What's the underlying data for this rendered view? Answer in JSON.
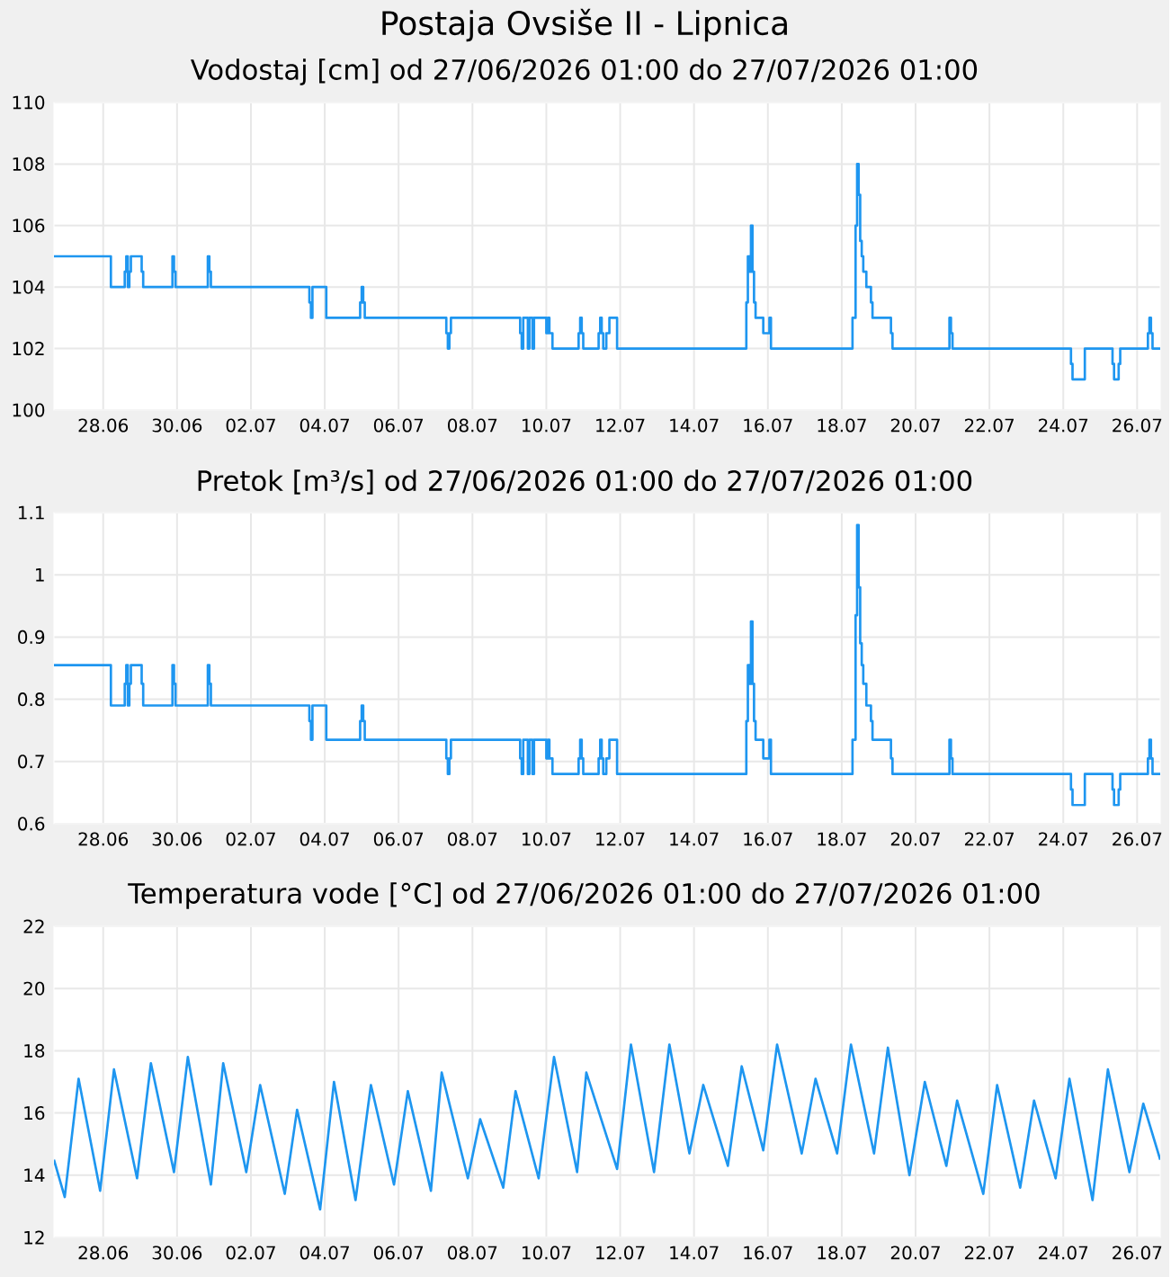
{
  "chart_data": [
    {
      "type": "step",
      "title": "Postaja Ovsiše II - Lipnica",
      "subtitle": "Vodostaj [cm] od 27/06/2026 01:00 do 27/07/2026 01:00",
      "grid": true,
      "xlim": [
        "2026-06-26T16:00",
        "2026-07-26T15:00"
      ],
      "ylim": [
        100,
        110
      ],
      "yticks": [
        100,
        102,
        104,
        106,
        108,
        110
      ],
      "xticks": [
        {
          "value": "2026-06-28",
          "label": "28.06"
        },
        {
          "value": "2026-06-30",
          "label": "30.06"
        },
        {
          "value": "2026-07-02",
          "label": "02.07"
        },
        {
          "value": "2026-07-04",
          "label": "04.07"
        },
        {
          "value": "2026-07-06",
          "label": "06.07"
        },
        {
          "value": "2026-07-08",
          "label": "08.07"
        },
        {
          "value": "2026-07-10",
          "label": "10.07"
        },
        {
          "value": "2026-07-12",
          "label": "12.07"
        },
        {
          "value": "2026-07-14",
          "label": "14.07"
        },
        {
          "value": "2026-07-16",
          "label": "16.07"
        },
        {
          "value": "2026-07-18",
          "label": "18.07"
        },
        {
          "value": "2026-07-20",
          "label": "20.07"
        },
        {
          "value": "2026-07-22",
          "label": "22.07"
        },
        {
          "value": "2026-07-24",
          "label": "24.07"
        },
        {
          "value": "2026-07-26",
          "label": "26.07"
        }
      ],
      "x": [
        "2026-06-26T16:00",
        "2026-06-28T05:00",
        "2026-06-28T14:00",
        "2026-06-28T15:00",
        "2026-06-28T16:00",
        "2026-06-28T17:00",
        "2026-06-28T18:00",
        "2026-06-29T01:00",
        "2026-06-29T02:00",
        "2026-06-29T21:00",
        "2026-06-29T22:00",
        "2026-06-29T23:00",
        "2026-06-30T20:00",
        "2026-06-30T21:00",
        "2026-06-30T22:00",
        "2026-07-03T14:00",
        "2026-07-03T15:00",
        "2026-07-03T16:00",
        "2026-07-04T01:00",
        "2026-07-04T23:00",
        "2026-07-05T00:00",
        "2026-07-05T01:00",
        "2026-07-05T02:00",
        "2026-07-07T07:00",
        "2026-07-07T08:00",
        "2026-07-07T09:00",
        "2026-07-07T10:00",
        "2026-07-09T07:00",
        "2026-07-09T08:00",
        "2026-07-09T09:00",
        "2026-07-09T12:00",
        "2026-07-09T13:00",
        "2026-07-09T15:00",
        "2026-07-09T16:00",
        "2026-07-10T00:00",
        "2026-07-10T01:00",
        "2026-07-10T02:00",
        "2026-07-10T04:00",
        "2026-07-10T21:00",
        "2026-07-10T22:00",
        "2026-07-10T23:00",
        "2026-07-11T00:00",
        "2026-07-11T10:00",
        "2026-07-11T11:00",
        "2026-07-11T12:00",
        "2026-07-11T13:00",
        "2026-07-11T15:00",
        "2026-07-11T17:00",
        "2026-07-11T22:00",
        "2026-07-15T10:00",
        "2026-07-15T11:00",
        "2026-07-15T12:00",
        "2026-07-15T13:00",
        "2026-07-15T14:00",
        "2026-07-15T15:00",
        "2026-07-15T16:00",
        "2026-07-15T21:00",
        "2026-07-16T01:00",
        "2026-07-16T02:00",
        "2026-07-18T07:00",
        "2026-07-18T09:00",
        "2026-07-18T10:00",
        "2026-07-18T11:00",
        "2026-07-18T12:00",
        "2026-07-18T13:00",
        "2026-07-18T14:00",
        "2026-07-18T16:00",
        "2026-07-18T19:00",
        "2026-07-18T20:00",
        "2026-07-19T08:00",
        "2026-07-19T09:00",
        "2026-07-20T22:00",
        "2026-07-20T23:00",
        "2026-07-21T00:00",
        "2026-07-24T05:00",
        "2026-07-24T06:00",
        "2026-07-24T14:00",
        "2026-07-25T08:00",
        "2026-07-25T09:00",
        "2026-07-25T12:00",
        "2026-07-25T13:00",
        "2026-07-26T07:00",
        "2026-07-26T08:00",
        "2026-07-26T09:00",
        "2026-07-26T10:00",
        "2026-07-26T15:00"
      ],
      "series": [
        {
          "color": "#1e96f0",
          "values": [
            105,
            104,
            104.5,
            105,
            104,
            104.5,
            105,
            104.5,
            104,
            105,
            104.5,
            104,
            105,
            104.5,
            104,
            103.5,
            103,
            104,
            103,
            103.5,
            104,
            103.5,
            103,
            102.5,
            102,
            102.5,
            103,
            102.5,
            102,
            103,
            102,
            103,
            102,
            103,
            102.5,
            103,
            102.5,
            102,
            102.5,
            103,
            102.5,
            102,
            102.5,
            103,
            102.5,
            102,
            102.5,
            103,
            102,
            103.5,
            105,
            104.5,
            106,
            104.5,
            103.5,
            103,
            102.5,
            103,
            102,
            103,
            106,
            108,
            107,
            105.5,
            105,
            104.5,
            104,
            103.5,
            103,
            102.5,
            102,
            103,
            102.5,
            102,
            101.5,
            101,
            102,
            101.5,
            101,
            101.5,
            102,
            102.5,
            103,
            102.5,
            102,
            102
          ]
        }
      ]
    },
    {
      "type": "step",
      "title": "Pretok [m³/s] od 27/06/2026 01:00 do 27/07/2026 01:00",
      "grid": true,
      "xlim": [
        "2026-06-26T16:00",
        "2026-07-26T15:00"
      ],
      "ylim": [
        0.6,
        1.1
      ],
      "yticks": [
        0.6,
        0.7,
        0.8,
        0.9,
        1,
        1.1
      ],
      "xticks": [
        {
          "value": "2026-06-28",
          "label": "28.06"
        },
        {
          "value": "2026-06-30",
          "label": "30.06"
        },
        {
          "value": "2026-07-02",
          "label": "02.07"
        },
        {
          "value": "2026-07-04",
          "label": "04.07"
        },
        {
          "value": "2026-07-06",
          "label": "06.07"
        },
        {
          "value": "2026-07-08",
          "label": "08.07"
        },
        {
          "value": "2026-07-10",
          "label": "10.07"
        },
        {
          "value": "2026-07-12",
          "label": "12.07"
        },
        {
          "value": "2026-07-14",
          "label": "14.07"
        },
        {
          "value": "2026-07-16",
          "label": "16.07"
        },
        {
          "value": "2026-07-18",
          "label": "18.07"
        },
        {
          "value": "2026-07-20",
          "label": "20.07"
        },
        {
          "value": "2026-07-22",
          "label": "22.07"
        },
        {
          "value": "2026-07-24",
          "label": "24.07"
        },
        {
          "value": "2026-07-26",
          "label": "26.07"
        }
      ],
      "x": [
        "2026-06-26T16:00",
        "2026-06-28T05:00",
        "2026-06-28T14:00",
        "2026-06-28T15:00",
        "2026-06-28T16:00",
        "2026-06-28T17:00",
        "2026-06-28T18:00",
        "2026-06-29T01:00",
        "2026-06-29T02:00",
        "2026-06-29T21:00",
        "2026-06-29T22:00",
        "2026-06-29T23:00",
        "2026-06-30T20:00",
        "2026-06-30T21:00",
        "2026-06-30T22:00",
        "2026-07-03T14:00",
        "2026-07-03T15:00",
        "2026-07-03T16:00",
        "2026-07-04T01:00",
        "2026-07-04T23:00",
        "2026-07-05T00:00",
        "2026-07-05T01:00",
        "2026-07-05T02:00",
        "2026-07-07T07:00",
        "2026-07-07T08:00",
        "2026-07-07T09:00",
        "2026-07-07T10:00",
        "2026-07-09T07:00",
        "2026-07-09T08:00",
        "2026-07-09T09:00",
        "2026-07-09T12:00",
        "2026-07-09T13:00",
        "2026-07-09T15:00",
        "2026-07-09T16:00",
        "2026-07-10T00:00",
        "2026-07-10T01:00",
        "2026-07-10T02:00",
        "2026-07-10T04:00",
        "2026-07-10T21:00",
        "2026-07-10T22:00",
        "2026-07-10T23:00",
        "2026-07-11T00:00",
        "2026-07-11T10:00",
        "2026-07-11T11:00",
        "2026-07-11T12:00",
        "2026-07-11T13:00",
        "2026-07-11T15:00",
        "2026-07-11T17:00",
        "2026-07-11T22:00",
        "2026-07-15T10:00",
        "2026-07-15T11:00",
        "2026-07-15T12:00",
        "2026-07-15T13:00",
        "2026-07-15T14:00",
        "2026-07-15T15:00",
        "2026-07-15T16:00",
        "2026-07-15T21:00",
        "2026-07-16T01:00",
        "2026-07-16T02:00",
        "2026-07-18T07:00",
        "2026-07-18T09:00",
        "2026-07-18T10:00",
        "2026-07-18T11:00",
        "2026-07-18T12:00",
        "2026-07-18T13:00",
        "2026-07-18T14:00",
        "2026-07-18T16:00",
        "2026-07-18T19:00",
        "2026-07-18T20:00",
        "2026-07-19T08:00",
        "2026-07-19T09:00",
        "2026-07-20T22:00",
        "2026-07-20T23:00",
        "2026-07-21T00:00",
        "2026-07-24T05:00",
        "2026-07-24T06:00",
        "2026-07-24T14:00",
        "2026-07-25T08:00",
        "2026-07-25T09:00",
        "2026-07-25T12:00",
        "2026-07-25T13:00",
        "2026-07-26T07:00",
        "2026-07-26T08:00",
        "2026-07-26T09:00",
        "2026-07-26T10:00",
        "2026-07-26T15:00"
      ],
      "series": [
        {
          "color": "#1e96f0",
          "values": [
            0.855,
            0.79,
            0.825,
            0.855,
            0.79,
            0.825,
            0.855,
            0.825,
            0.79,
            0.855,
            0.825,
            0.79,
            0.855,
            0.825,
            0.79,
            0.765,
            0.735,
            0.79,
            0.735,
            0.765,
            0.79,
            0.765,
            0.735,
            0.705,
            0.68,
            0.705,
            0.735,
            0.705,
            0.68,
            0.735,
            0.68,
            0.735,
            0.68,
            0.735,
            0.705,
            0.735,
            0.705,
            0.68,
            0.705,
            0.735,
            0.705,
            0.68,
            0.705,
            0.735,
            0.705,
            0.68,
            0.705,
            0.735,
            0.68,
            0.765,
            0.855,
            0.825,
            0.925,
            0.825,
            0.765,
            0.735,
            0.705,
            0.735,
            0.68,
            0.735,
            0.935,
            1.08,
            0.98,
            0.89,
            0.855,
            0.825,
            0.79,
            0.765,
            0.735,
            0.705,
            0.68,
            0.735,
            0.705,
            0.68,
            0.655,
            0.63,
            0.68,
            0.655,
            0.63,
            0.655,
            0.68,
            0.705,
            0.735,
            0.705,
            0.68,
            0.68
          ]
        }
      ]
    },
    {
      "type": "line",
      "title": "Temperatura vode [°C] od 27/06/2026 01:00 do 27/07/2026 01:00",
      "grid": true,
      "xlim": [
        "2026-06-26T16:00",
        "2026-07-26T15:00"
      ],
      "ylim": [
        12,
        22
      ],
      "yticks": [
        12,
        14,
        16,
        18,
        20,
        22
      ],
      "xticks": [
        {
          "value": "2026-06-28",
          "label": "28.06"
        },
        {
          "value": "2026-06-30",
          "label": "30.06"
        },
        {
          "value": "2026-07-02",
          "label": "02.07"
        },
        {
          "value": "2026-07-04",
          "label": "04.07"
        },
        {
          "value": "2026-07-06",
          "label": "06.07"
        },
        {
          "value": "2026-07-08",
          "label": "08.07"
        },
        {
          "value": "2026-07-10",
          "label": "10.07"
        },
        {
          "value": "2026-07-12",
          "label": "12.07"
        },
        {
          "value": "2026-07-14",
          "label": "14.07"
        },
        {
          "value": "2026-07-16",
          "label": "16.07"
        },
        {
          "value": "2026-07-18",
          "label": "18.07"
        },
        {
          "value": "2026-07-20",
          "label": "20.07"
        },
        {
          "value": "2026-07-22",
          "label": "22.07"
        },
        {
          "value": "2026-07-24",
          "label": "24.07"
        },
        {
          "value": "2026-07-26",
          "label": "26.07"
        }
      ],
      "x": [
        "2026-06-26T16:00",
        "2026-06-26T23:00",
        "2026-06-27T08:00",
        "2026-06-27T22:00",
        "2026-06-28T07:00",
        "2026-06-28T22:00",
        "2026-06-29T07:00",
        "2026-06-29T22:00",
        "2026-06-30T07:00",
        "2026-06-30T22:00",
        "2026-07-01T06:00",
        "2026-07-01T21:00",
        "2026-07-02T06:00",
        "2026-07-02T22:00",
        "2026-07-03T06:00",
        "2026-07-03T21:00",
        "2026-07-04T06:00",
        "2026-07-04T20:00",
        "2026-07-05T06:00",
        "2026-07-05T21:00",
        "2026-07-06T06:00",
        "2026-07-06T21:00",
        "2026-07-07T04:00",
        "2026-07-07T21:00",
        "2026-07-08T05:00",
        "2026-07-08T20:00",
        "2026-07-09T04:00",
        "2026-07-09T19:00",
        "2026-07-10T05:00",
        "2026-07-10T20:00",
        "2026-07-11T02:00",
        "2026-07-11T22:00",
        "2026-07-12T07:00",
        "2026-07-12T22:00",
        "2026-07-13T08:00",
        "2026-07-13T21:00",
        "2026-07-14T06:00",
        "2026-07-14T22:00",
        "2026-07-15T07:00",
        "2026-07-15T21:00",
        "2026-07-16T06:00",
        "2026-07-16T22:00",
        "2026-07-17T07:00",
        "2026-07-17T21:00",
        "2026-07-18T06:00",
        "2026-07-18T21:00",
        "2026-07-19T06:00",
        "2026-07-19T20:00",
        "2026-07-20T06:00",
        "2026-07-20T20:00",
        "2026-07-21T03:00",
        "2026-07-21T20:00",
        "2026-07-22T05:00",
        "2026-07-22T20:00",
        "2026-07-23T05:00",
        "2026-07-23T19:00",
        "2026-07-24T04:00",
        "2026-07-24T19:00",
        "2026-07-25T05:00",
        "2026-07-25T19:00",
        "2026-07-26T04:00",
        "2026-07-26T15:00"
      ],
      "series": [
        {
          "color": "#1e96f0",
          "values": [
            14.5,
            13.3,
            17.1,
            13.5,
            17.4,
            13.9,
            17.6,
            14.1,
            17.8,
            13.7,
            17.6,
            14.1,
            16.9,
            13.4,
            16.1,
            12.9,
            17.0,
            13.2,
            16.9,
            13.7,
            16.7,
            13.5,
            17.3,
            13.9,
            15.8,
            13.6,
            16.7,
            13.9,
            17.8,
            14.1,
            17.3,
            14.2,
            18.2,
            14.1,
            18.2,
            14.7,
            16.9,
            14.3,
            17.5,
            14.8,
            18.2,
            14.7,
            17.1,
            14.7,
            18.2,
            14.7,
            18.1,
            14.0,
            17.0,
            14.3,
            16.4,
            13.4,
            16.9,
            13.6,
            16.4,
            13.9,
            17.1,
            13.2,
            17.4,
            14.1,
            16.3,
            14.5
          ]
        }
      ]
    }
  ]
}
